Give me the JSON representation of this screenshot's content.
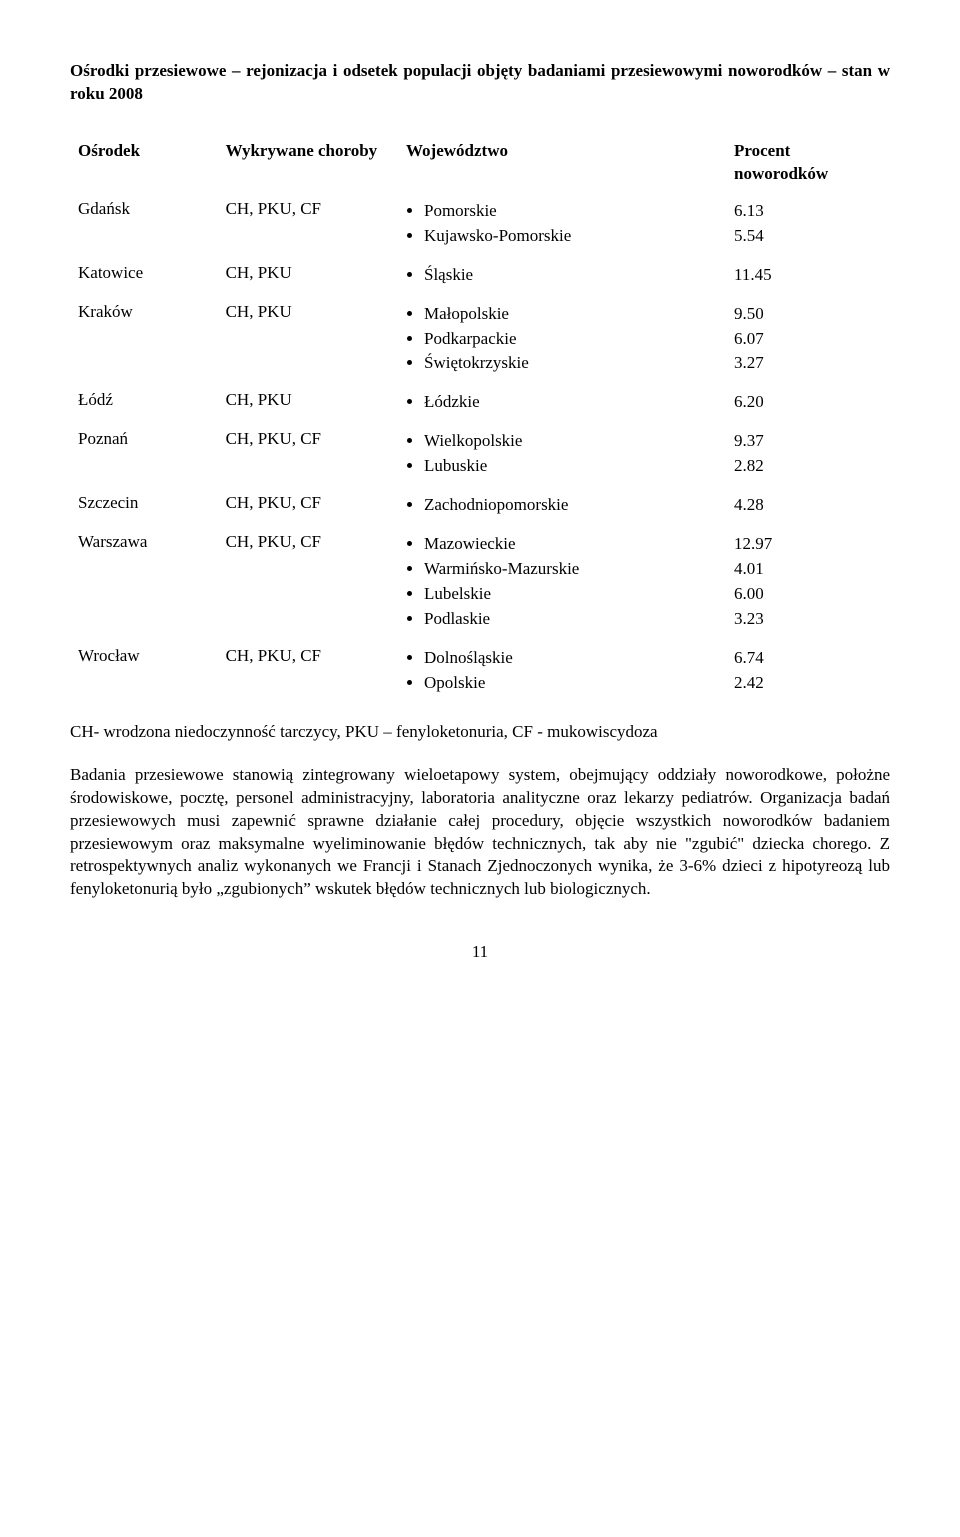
{
  "title": "Ośrodki przesiewowe – rejonizacja i odsetek populacji objęty badaniami przesiewowymi noworodków – stan w roku 2008",
  "headers": {
    "center": "Ośrodek",
    "diseases": "Wykrywane choroby",
    "region": "Województwo",
    "percent": "Procent noworodków"
  },
  "rows": {
    "gdansk": {
      "center": "Gdańsk",
      "diseases": "CH, PKU, CF",
      "regions": [
        "Pomorskie",
        "Kujawsko-Pomorskie"
      ],
      "percents": [
        "6.13",
        "5.54"
      ]
    },
    "katowice": {
      "center": "Katowice",
      "diseases": "CH, PKU",
      "regions": [
        "Śląskie"
      ],
      "percents": [
        "11.45"
      ]
    },
    "krakow": {
      "center": "Kraków",
      "diseases": "CH, PKU",
      "regions": [
        "Małopolskie",
        "Podkarpackie",
        "Świętokrzyskie"
      ],
      "percents": [
        "9.50",
        "6.07",
        "3.27"
      ]
    },
    "lodz": {
      "center": "Łódź",
      "diseases": "CH, PKU",
      "regions": [
        "Łódzkie"
      ],
      "percents": [
        "6.20"
      ]
    },
    "poznan": {
      "center": "Poznań",
      "diseases": "CH, PKU, CF",
      "regions": [
        "Wielkopolskie",
        "Lubuskie"
      ],
      "percents": [
        "9.37",
        "2.82"
      ]
    },
    "szczecin": {
      "center": "Szczecin",
      "diseases": "CH, PKU, CF",
      "regions": [
        "Zachodniopomorskie"
      ],
      "percents": [
        "4.28"
      ]
    },
    "warszawa": {
      "center": "Warszawa",
      "diseases": "CH, PKU, CF",
      "regions": [
        "Mazowieckie",
        "Warmińsko-Mazurskie",
        "Lubelskie",
        "Podlaskie"
      ],
      "percents": [
        "12.97",
        "4.01",
        "6.00",
        "3.23"
      ]
    },
    "wroclaw": {
      "center": "Wrocław",
      "diseases": "CH, PKU, CF",
      "regions": [
        "Dolnośląskie",
        "Opolskie"
      ],
      "percents": [
        "6.74",
        "2.42"
      ]
    }
  },
  "footnote": "CH- wrodzona niedoczynność tarczycy, PKU – fenyloketonuria, CF - mukowiscydoza",
  "body": "Badania przesiewowe stanowią zintegrowany wieloetapowy system, obejmujący oddziały noworodkowe, położne środowiskowe, pocztę, personel administracyjny, laboratoria analityczne oraz lekarzy pediatrów. Organizacja badań przesiewowych musi zapewnić sprawne działanie całej procedury, objęcie wszystkich noworodków badaniem przesiewowym oraz maksymalne wyeliminowanie błędów technicznych, tak aby nie \"zgubić\" dziecka chorego. Z retrospektywnych analiz wykonanych we Francji i Stanach Zjednoczonych wynika, że 3-6% dzieci z hipotyreozą lub fenyloketonurią było „zgubionych” wskutek błędów technicznych lub biologicznych.",
  "page": "11"
}
